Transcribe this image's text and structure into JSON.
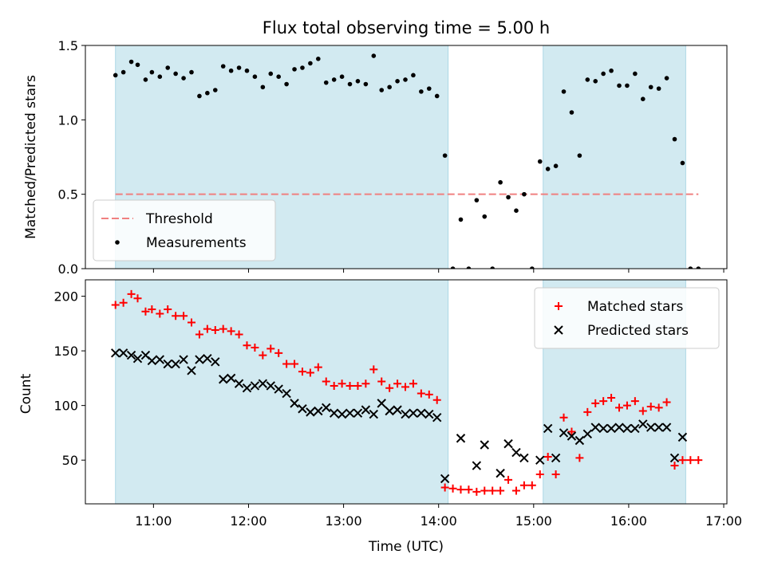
{
  "chart_data": [
    {
      "type": "scatter",
      "title": "Flux total observing time = 5.00 h",
      "xlabel": "",
      "ylabel": "Matched/Predicted stars",
      "ylim": [
        0,
        1.5
      ],
      "yticks": [
        0.0,
        0.5,
        1.0,
        1.5
      ],
      "ytick_labels": [
        "0.0",
        "0.5",
        "1.0",
        "1.5"
      ],
      "xlim": [
        "10:17",
        "17:02"
      ],
      "xticks": [
        "11:00",
        "12:00",
        "13:00",
        "14:00",
        "15:00",
        "16:00",
        "17:00"
      ],
      "xtick_labels_visible": false,
      "shaded_intervals": [
        [
          "10:36",
          "14:06"
        ],
        [
          "15:06",
          "16:36"
        ]
      ],
      "shade_color": "#add8e6",
      "legend_position": "lower-left",
      "threshold": {
        "name": "Threshold",
        "value": 0.5,
        "x_start": "10:36",
        "x_end": "16:44",
        "color": "#f08080",
        "style": "dashed"
      },
      "series": [
        {
          "name": "Measurements",
          "marker": "dot",
          "color": "#000000",
          "points": [
            [
              "10:36",
              1.3
            ],
            [
              "10:41",
              1.32
            ],
            [
              "10:46",
              1.39
            ],
            [
              "10:50",
              1.37
            ],
            [
              "10:55",
              1.27
            ],
            [
              "10:59",
              1.32
            ],
            [
              "11:04",
              1.29
            ],
            [
              "11:09",
              1.35
            ],
            [
              "11:14",
              1.31
            ],
            [
              "11:19",
              1.28
            ],
            [
              "11:24",
              1.32
            ],
            [
              "11:29",
              1.16
            ],
            [
              "11:34",
              1.18
            ],
            [
              "11:39",
              1.2
            ],
            [
              "11:44",
              1.36
            ],
            [
              "11:49",
              1.33
            ],
            [
              "11:54",
              1.35
            ],
            [
              "11:59",
              1.33
            ],
            [
              "12:04",
              1.29
            ],
            [
              "12:09",
              1.22
            ],
            [
              "12:14",
              1.31
            ],
            [
              "12:19",
              1.29
            ],
            [
              "12:24",
              1.24
            ],
            [
              "12:29",
              1.34
            ],
            [
              "12:34",
              1.35
            ],
            [
              "12:39",
              1.38
            ],
            [
              "12:44",
              1.41
            ],
            [
              "12:49",
              1.25
            ],
            [
              "12:54",
              1.27
            ],
            [
              "12:59",
              1.29
            ],
            [
              "13:04",
              1.24
            ],
            [
              "13:09",
              1.26
            ],
            [
              "13:14",
              1.24
            ],
            [
              "13:19",
              1.43
            ],
            [
              "13:24",
              1.2
            ],
            [
              "13:29",
              1.22
            ],
            [
              "13:34",
              1.26
            ],
            [
              "13:39",
              1.27
            ],
            [
              "13:44",
              1.3
            ],
            [
              "13:49",
              1.19
            ],
            [
              "13:54",
              1.21
            ],
            [
              "13:59",
              1.16
            ],
            [
              "14:04",
              0.76
            ],
            [
              "14:09",
              0.0
            ],
            [
              "14:14",
              0.33
            ],
            [
              "14:19",
              0.0
            ],
            [
              "14:24",
              0.46
            ],
            [
              "14:29",
              0.35
            ],
            [
              "14:34",
              0.0
            ],
            [
              "14:39",
              0.58
            ],
            [
              "14:44",
              0.48
            ],
            [
              "14:49",
              0.39
            ],
            [
              "14:54",
              0.5
            ],
            [
              "14:59",
              0.0
            ],
            [
              "15:04",
              0.72
            ],
            [
              "15:09",
              0.67
            ],
            [
              "15:14",
              0.69
            ],
            [
              "15:19",
              1.19
            ],
            [
              "15:24",
              1.05
            ],
            [
              "15:29",
              0.76
            ],
            [
              "15:34",
              1.27
            ],
            [
              "15:39",
              1.26
            ],
            [
              "15:44",
              1.31
            ],
            [
              "15:49",
              1.33
            ],
            [
              "15:54",
              1.23
            ],
            [
              "15:59",
              1.23
            ],
            [
              "16:04",
              1.31
            ],
            [
              "16:09",
              1.14
            ],
            [
              "16:14",
              1.22
            ],
            [
              "16:19",
              1.21
            ],
            [
              "16:24",
              1.28
            ],
            [
              "16:29",
              0.87
            ],
            [
              "16:34",
              0.71
            ],
            [
              "16:39",
              0.0
            ],
            [
              "16:44",
              0.0
            ]
          ]
        }
      ]
    },
    {
      "type": "scatter",
      "title": "",
      "xlabel": "Time (UTC)",
      "ylabel": "Count",
      "ylim": [
        10,
        215
      ],
      "yticks": [
        50,
        100,
        150,
        200
      ],
      "ytick_labels": [
        "50",
        "100",
        "150",
        "200"
      ],
      "xlim": [
        "10:17",
        "17:02"
      ],
      "xticks": [
        "11:00",
        "12:00",
        "13:00",
        "14:00",
        "15:00",
        "16:00",
        "17:00"
      ],
      "xtick_labels": [
        "11:00",
        "12:00",
        "13:00",
        "14:00",
        "15:00",
        "16:00",
        "17:00"
      ],
      "shaded_intervals": [
        [
          "10:36",
          "14:06"
        ],
        [
          "15:06",
          "16:36"
        ]
      ],
      "shade_color": "#add8e6",
      "legend_position": "top-right",
      "series": [
        {
          "name": "Matched stars",
          "marker": "plus",
          "color": "#ff0000",
          "points": [
            [
              "10:36",
              192
            ],
            [
              "10:41",
              194
            ],
            [
              "10:46",
              202
            ],
            [
              "10:50",
              198
            ],
            [
              "10:55",
              186
            ],
            [
              "10:59",
              188
            ],
            [
              "11:04",
              184
            ],
            [
              "11:09",
              188
            ],
            [
              "11:14",
              182
            ],
            [
              "11:19",
              182
            ],
            [
              "11:24",
              176
            ],
            [
              "11:29",
              165
            ],
            [
              "11:34",
              170
            ],
            [
              "11:39",
              169
            ],
            [
              "11:44",
              170
            ],
            [
              "11:49",
              168
            ],
            [
              "11:54",
              165
            ],
            [
              "11:59",
              155
            ],
            [
              "12:04",
              153
            ],
            [
              "12:09",
              146
            ],
            [
              "12:14",
              152
            ],
            [
              "12:19",
              148
            ],
            [
              "12:24",
              138
            ],
            [
              "12:29",
              138
            ],
            [
              "12:34",
              131
            ],
            [
              "12:39",
              130
            ],
            [
              "12:44",
              135
            ],
            [
              "12:49",
              122
            ],
            [
              "12:54",
              118
            ],
            [
              "12:59",
              120
            ],
            [
              "13:04",
              118
            ],
            [
              "13:09",
              118
            ],
            [
              "13:14",
              120
            ],
            [
              "13:19",
              133
            ],
            [
              "13:24",
              122
            ],
            [
              "13:29",
              116
            ],
            [
              "13:34",
              120
            ],
            [
              "13:39",
              117
            ],
            [
              "13:44",
              120
            ],
            [
              "13:49",
              111
            ],
            [
              "13:54",
              110
            ],
            [
              "13:59",
              105
            ],
            [
              "14:04",
              25
            ],
            [
              "14:09",
              24
            ],
            [
              "14:14",
              23
            ],
            [
              "14:19",
              23
            ],
            [
              "14:24",
              21
            ],
            [
              "14:29",
              22
            ],
            [
              "14:34",
              22
            ],
            [
              "14:39",
              22
            ],
            [
              "14:44",
              32
            ],
            [
              "14:49",
              22
            ],
            [
              "14:54",
              27
            ],
            [
              "14:59",
              27
            ],
            [
              "15:04",
              37
            ],
            [
              "15:09",
              53
            ],
            [
              "15:14",
              37
            ],
            [
              "15:19",
              89
            ],
            [
              "15:24",
              76
            ],
            [
              "15:29",
              52
            ],
            [
              "15:34",
              94
            ],
            [
              "15:39",
              102
            ],
            [
              "15:44",
              104
            ],
            [
              "15:49",
              107
            ],
            [
              "15:54",
              98
            ],
            [
              "15:59",
              100
            ],
            [
              "16:04",
              104
            ],
            [
              "16:09",
              95
            ],
            [
              "16:14",
              99
            ],
            [
              "16:19",
              98
            ],
            [
              "16:24",
              103
            ],
            [
              "16:29",
              45
            ],
            [
              "16:34",
              50
            ],
            [
              "16:39",
              50
            ],
            [
              "16:44",
              50
            ]
          ]
        },
        {
          "name": "Predicted stars",
          "marker": "x",
          "color": "#000000",
          "points": [
            [
              "10:36",
              148
            ],
            [
              "10:41",
              148
            ],
            [
              "10:46",
              146
            ],
            [
              "10:50",
              143
            ],
            [
              "10:55",
              146
            ],
            [
              "10:59",
              141
            ],
            [
              "11:04",
              142
            ],
            [
              "11:09",
              138
            ],
            [
              "11:14",
              138
            ],
            [
              "11:19",
              142
            ],
            [
              "11:24",
              132
            ],
            [
              "11:29",
              142
            ],
            [
              "11:34",
              143
            ],
            [
              "11:39",
              140
            ],
            [
              "11:44",
              124
            ],
            [
              "11:49",
              125
            ],
            [
              "11:54",
              120
            ],
            [
              "11:59",
              116
            ],
            [
              "12:04",
              118
            ],
            [
              "12:09",
              120
            ],
            [
              "12:14",
              118
            ],
            [
              "12:19",
              115
            ],
            [
              "12:24",
              111
            ],
            [
              "12:29",
              102
            ],
            [
              "12:34",
              97
            ],
            [
              "12:39",
              94
            ],
            [
              "12:44",
              95
            ],
            [
              "12:49",
              98
            ],
            [
              "12:54",
              93
            ],
            [
              "12:59",
              92
            ],
            [
              "13:04",
              93
            ],
            [
              "13:09",
              93
            ],
            [
              "13:14",
              96
            ],
            [
              "13:19",
              92
            ],
            [
              "13:24",
              102
            ],
            [
              "13:29",
              95
            ],
            [
              "13:34",
              96
            ],
            [
              "13:39",
              92
            ],
            [
              "13:44",
              93
            ],
            [
              "13:49",
              93
            ],
            [
              "13:54",
              92
            ],
            [
              "13:59",
              89
            ],
            [
              "14:04",
              33
            ],
            [
              "14:14",
              70
            ],
            [
              "14:24",
              45
            ],
            [
              "14:29",
              64
            ],
            [
              "14:39",
              38
            ],
            [
              "14:44",
              65
            ],
            [
              "14:49",
              57
            ],
            [
              "14:54",
              52
            ],
            [
              "15:04",
              50
            ],
            [
              "15:09",
              79
            ],
            [
              "15:14",
              52
            ],
            [
              "15:19",
              75
            ],
            [
              "15:24",
              72
            ],
            [
              "15:29",
              68
            ],
            [
              "15:34",
              74
            ],
            [
              "15:39",
              80
            ],
            [
              "15:44",
              79
            ],
            [
              "15:49",
              79
            ],
            [
              "15:54",
              80
            ],
            [
              "15:59",
              79
            ],
            [
              "16:04",
              79
            ],
            [
              "16:09",
              83
            ],
            [
              "16:14",
              80
            ],
            [
              "16:19",
              80
            ],
            [
              "16:24",
              80
            ],
            [
              "16:29",
              52
            ],
            [
              "16:34",
              71
            ]
          ]
        }
      ]
    }
  ]
}
